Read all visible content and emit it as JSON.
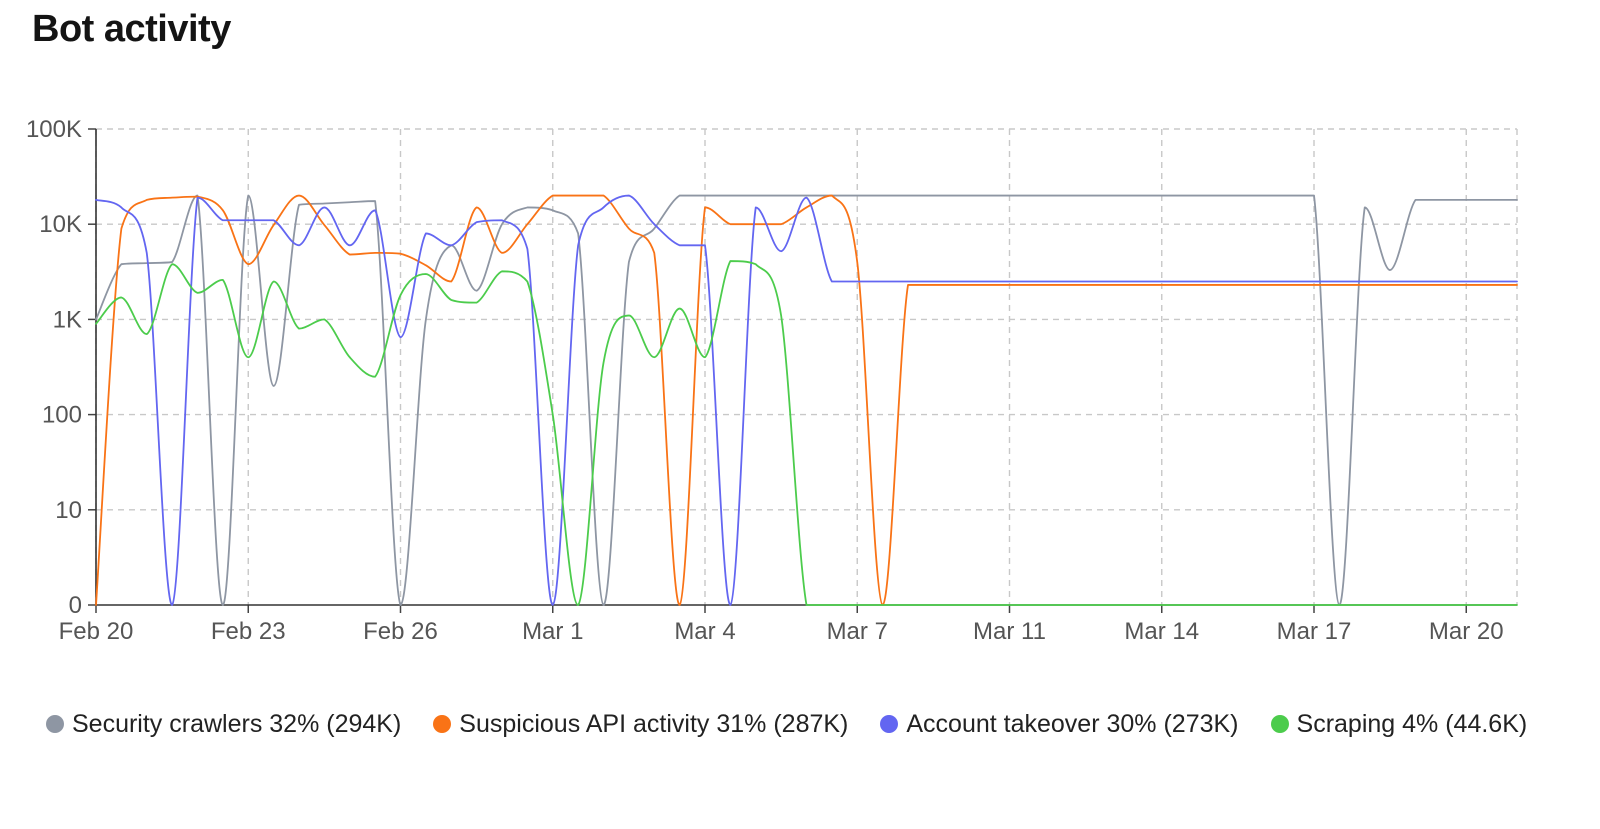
{
  "title": "Bot activity",
  "chart_data": {
    "type": "line",
    "title": "Bot activity",
    "xlabel": "",
    "ylabel": "",
    "yscale": "log",
    "y_ticks": [
      {
        "value": 0,
        "label": "0"
      },
      {
        "value": 10,
        "label": "10"
      },
      {
        "value": 100,
        "label": "100"
      },
      {
        "value": 1000,
        "label": "1K"
      },
      {
        "value": 10000,
        "label": "10K"
      },
      {
        "value": 100000,
        "label": "100K"
      }
    ],
    "x_tick_labels": [
      "Feb 20",
      "Feb 23",
      "Feb 26",
      "Mar 1",
      "Mar 4",
      "Mar 7",
      "Mar 11",
      "Mar 14",
      "Mar 17",
      "Mar 20"
    ],
    "x_tick_days": [
      0,
      3,
      6,
      9,
      12,
      15,
      18,
      21,
      24,
      27
    ],
    "x_days": [
      0,
      0.5,
      1,
      1.5,
      2,
      2.5,
      3,
      3.5,
      4,
      4.5,
      5,
      5.5,
      6,
      6.5,
      7,
      7.5,
      8,
      8.5,
      9,
      9.5,
      10,
      10.5,
      11,
      11.5,
      12,
      12.5,
      13,
      13.5,
      14,
      14.5,
      15,
      15.5,
      16,
      16.5,
      17,
      17.5,
      18,
      18.5,
      19,
      19.5,
      20,
      20.5,
      21,
      21.5,
      22,
      22.5,
      23,
      23.5,
      24,
      24.5,
      25,
      25.5,
      26,
      26.5,
      27,
      27.5,
      28
    ],
    "grid": true,
    "legend_position": "bottom",
    "series": [
      {
        "name": "Security crawlers",
        "legend": "Security crawlers 32% (294K)",
        "color": "#8e96a3",
        "values": [
          1000,
          3800,
          3900,
          4000,
          20000,
          0,
          20000,
          200,
          16000,
          16500,
          17000,
          17500,
          0,
          1000,
          6000,
          2000,
          10000,
          15000,
          14000,
          8000,
          0,
          4000,
          9000,
          20000,
          20000,
          20000,
          20000,
          20000,
          20000,
          20000,
          20000,
          20000,
          20000,
          20000,
          20000,
          20000,
          20000,
          20000,
          20000,
          20000,
          20000,
          20000,
          20000,
          20000,
          20000,
          20000,
          20000,
          20000,
          20000,
          0,
          15000,
          3300,
          18000,
          18000,
          18000,
          18000,
          18000
        ]
      },
      {
        "name": "Suspicious API activity",
        "legend": "Suspicious API activity 31% (287K)",
        "color": "#f97316",
        "values": [
          0,
          9000,
          18000,
          19000,
          19500,
          14000,
          3800,
          9800,
          20000,
          9800,
          4800,
          5000,
          4900,
          3700,
          2500,
          15000,
          5000,
          10000,
          20000,
          20000,
          20000,
          9000,
          5000,
          0,
          15000,
          10000,
          10000,
          10000,
          15000,
          20000,
          4000,
          0,
          2300,
          2300,
          2300,
          2300,
          2300,
          2300,
          2300,
          2300,
          2300,
          2300,
          2300,
          2300,
          2300,
          2300,
          2300,
          2300,
          2300,
          2300,
          2300,
          2300,
          2300,
          2300,
          2300,
          2300,
          2300
        ]
      },
      {
        "name": "Account takeover",
        "legend": "Account takeover 30% (273K)",
        "color": "#6366f1",
        "values": [
          18000,
          15000,
          5000,
          0,
          19000,
          11000,
          11000,
          11000,
          6000,
          15000,
          6000,
          14000,
          650,
          8000,
          6000,
          10500,
          11000,
          5500,
          0,
          6000,
          15000,
          20000,
          10000,
          6000,
          6000,
          0,
          15000,
          5200,
          19000,
          2500,
          2500,
          2500,
          2500,
          2500,
          2500,
          2500,
          2500,
          2500,
          2500,
          2500,
          2500,
          2500,
          2500,
          2500,
          2500,
          2500,
          2500,
          2500,
          2500,
          2500,
          2500,
          2500,
          2500,
          2500,
          2500,
          2500,
          2500
        ]
      },
      {
        "name": "Scraping",
        "legend": "Scraping 4% (44.6K)",
        "color": "#4ccc4c",
        "values": [
          900,
          1700,
          700,
          3800,
          1900,
          2600,
          400,
          2500,
          800,
          1000,
          400,
          250,
          1800,
          3000,
          1600,
          1500,
          3200,
          2500,
          100,
          0,
          350,
          1100,
          400,
          1300,
          400,
          4100,
          3800,
          1100,
          0,
          0,
          0,
          0,
          0,
          0,
          0,
          0,
          0,
          0,
          0,
          0,
          0,
          0,
          0,
          0,
          0,
          0,
          0,
          0,
          0,
          0,
          0,
          0,
          0,
          0,
          0,
          0,
          0
        ]
      }
    ]
  }
}
